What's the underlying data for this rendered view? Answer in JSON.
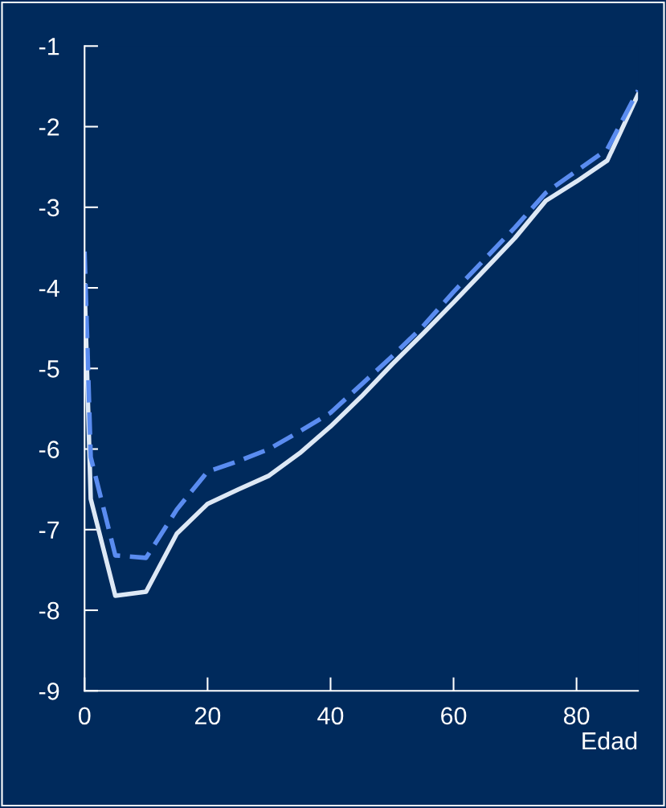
{
  "chart_data": {
    "type": "line",
    "xlabel": "Edad",
    "x": [
      0,
      1,
      5,
      10,
      15,
      20,
      25,
      30,
      35,
      40,
      45,
      50,
      55,
      60,
      65,
      70,
      75,
      80,
      85,
      90
    ],
    "series": [
      {
        "color": "#dde8f5",
        "line_style": "solid",
        "values": [
          -3.97,
          -6.62,
          -7.82,
          -7.77,
          -7.05,
          -6.68,
          -6.5,
          -6.33,
          -6.05,
          -5.72,
          -5.35,
          -4.95,
          -4.57,
          -4.18,
          -3.78,
          -3.38,
          -2.92,
          -2.68,
          -2.42,
          -1.6
        ]
      },
      {
        "color": "#5a8cf0",
        "line_style": "dashed",
        "values": [
          -3.55,
          -6.1,
          -7.32,
          -7.35,
          -6.75,
          -6.28,
          -6.15,
          -6.0,
          -5.78,
          -5.55,
          -5.2,
          -4.85,
          -4.48,
          -4.05,
          -3.65,
          -3.25,
          -2.82,
          -2.55,
          -2.28,
          -1.55
        ]
      }
    ],
    "xlim": [
      0,
      90
    ],
    "xticks": [
      0,
      20,
      40,
      60,
      80
    ],
    "ylim": [
      -9,
      -1
    ],
    "yticks": [
      -9,
      -8,
      -7,
      -6,
      -5,
      -4,
      -3,
      -2,
      -1
    ],
    "grid": false,
    "legend": false,
    "marker": "none"
  }
}
